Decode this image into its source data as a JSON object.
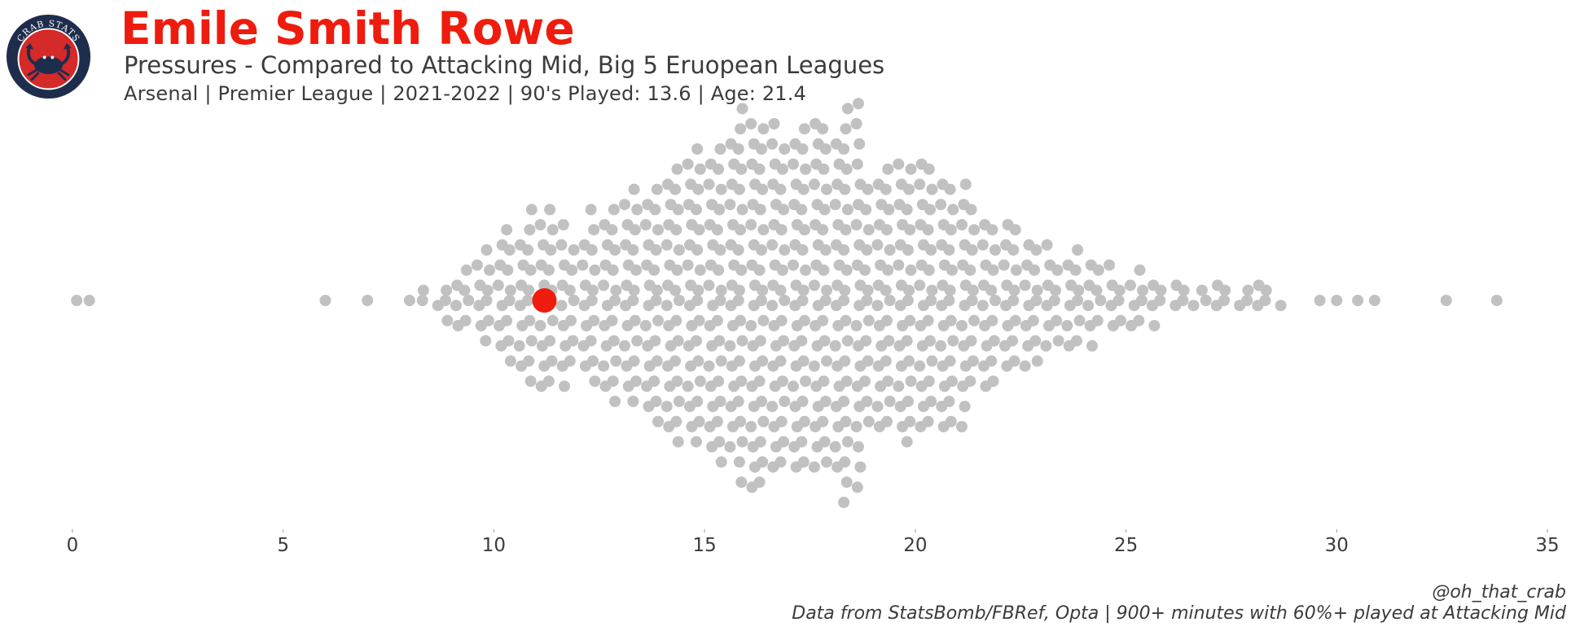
{
  "header": {
    "title": "Emile Smith Rowe",
    "subtitle": "Pressures - Compared to Attacking Mid, Big 5 Eruopean Leagues",
    "info": "Arsenal  | Premier League | 2021-2022 | 90's Played: 13.6 | Age: 21.4"
  },
  "logo": {
    "text": "CRAB STATS",
    "icon": "crab-icon",
    "colors": {
      "ring": "#1f2d4d",
      "inner": "#d42a2a",
      "crab": "#1f2d4d",
      "text": "#ffffff"
    }
  },
  "footer": {
    "credit": "@oh_that_crab",
    "source": "Data from StatsBomb/FBRef, Opta | 900+ minutes with 60%+ played at Attacking Mid"
  },
  "colors": {
    "highlight": "#ee1c0e",
    "points": "#c1c1c1",
    "text": "#3b3b3b"
  },
  "chart_data": {
    "type": "scatter",
    "subtype": "beeswarm",
    "title": "",
    "xlabel": "",
    "ylabel": "",
    "xlim": [
      0,
      35
    ],
    "xticks": [
      0,
      5,
      10,
      15,
      20,
      25,
      30,
      35
    ],
    "grid": false,
    "axis_lines": false,
    "highlight": {
      "name": "Emile Smith Rowe",
      "value": 11.2,
      "color": "#ee1c0e"
    },
    "outliers": [
      0.1,
      0.4,
      6.0,
      7.0,
      8.0,
      29.6,
      30.0,
      30.5,
      30.9,
      32.6,
      33.8
    ],
    "distribution": [
      {
        "bin": 8.5,
        "count": 3
      },
      {
        "bin": 9.0,
        "count": 6
      },
      {
        "bin": 9.5,
        "count": 8
      },
      {
        "bin": 10.0,
        "count": 12
      },
      {
        "bin": 10.5,
        "count": 15
      },
      {
        "bin": 11.0,
        "count": 19
      },
      {
        "bin": 11.5,
        "count": 19
      },
      {
        "bin": 12.0,
        "count": 14
      },
      {
        "bin": 12.5,
        "count": 19
      },
      {
        "bin": 13.0,
        "count": 21
      },
      {
        "bin": 13.5,
        "count": 23
      },
      {
        "bin": 14.0,
        "count": 26
      },
      {
        "bin": 14.5,
        "count": 29
      },
      {
        "bin": 15.0,
        "count": 31
      },
      {
        "bin": 15.5,
        "count": 33
      },
      {
        "bin": 16.0,
        "count": 39
      },
      {
        "bin": 16.5,
        "count": 37
      },
      {
        "bin": 17.0,
        "count": 34
      },
      {
        "bin": 17.5,
        "count": 36
      },
      {
        "bin": 18.0,
        "count": 35
      },
      {
        "bin": 18.5,
        "count": 41
      },
      {
        "bin": 19.0,
        "count": 26
      },
      {
        "bin": 19.5,
        "count": 28
      },
      {
        "bin": 20.0,
        "count": 29
      },
      {
        "bin": 20.5,
        "count": 27
      },
      {
        "bin": 21.0,
        "count": 26
      },
      {
        "bin": 21.5,
        "count": 19
      },
      {
        "bin": 22.0,
        "count": 17
      },
      {
        "bin": 22.5,
        "count": 15
      },
      {
        "bin": 23.0,
        "count": 13
      },
      {
        "bin": 23.5,
        "count": 10
      },
      {
        "bin": 24.0,
        "count": 11
      },
      {
        "bin": 24.5,
        "count": 8
      },
      {
        "bin": 25.0,
        "count": 6
      },
      {
        "bin": 25.5,
        "count": 7
      },
      {
        "bin": 26.0,
        "count": 4
      },
      {
        "bin": 26.5,
        "count": 3
      },
      {
        "bin": 27.0,
        "count": 4
      },
      {
        "bin": 27.5,
        "count": 3
      },
      {
        "bin": 28.0,
        "count": 4
      },
      {
        "bin": 28.5,
        "count": 3
      }
    ]
  }
}
